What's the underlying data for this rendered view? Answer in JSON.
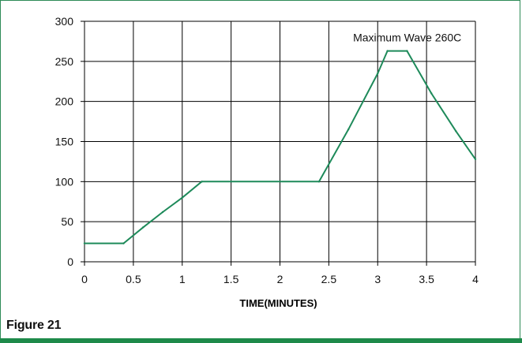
{
  "figure_label": "Figure 21",
  "chart_data": {
    "type": "line",
    "title": "",
    "xlabel": "TIME(MINUTES)",
    "ylabel": "",
    "xlim": [
      0,
      4
    ],
    "ylim": [
      0,
      300
    ],
    "x_ticks": [
      "0",
      "0.5",
      "1",
      "1.5",
      "2",
      "2.5",
      "3",
      "3.5",
      "4"
    ],
    "y_ticks": [
      "0",
      "50",
      "100",
      "150",
      "200",
      "250",
      "300"
    ],
    "grid": true,
    "line_color": "#1e8a5a",
    "annotation": {
      "text": "Maximum Wave 260C",
      "x": 2.95,
      "y": 280
    },
    "series": [
      {
        "x": [
          0,
          0.4,
          0.6,
          0.8,
          1.0,
          1.2,
          2.4,
          2.7,
          3.0,
          3.1,
          3.3,
          3.55,
          3.8,
          4.0
        ],
        "y": [
          23,
          23,
          43,
          62,
          80,
          100,
          100,
          165,
          235,
          263,
          263,
          210,
          163,
          128
        ]
      }
    ]
  }
}
